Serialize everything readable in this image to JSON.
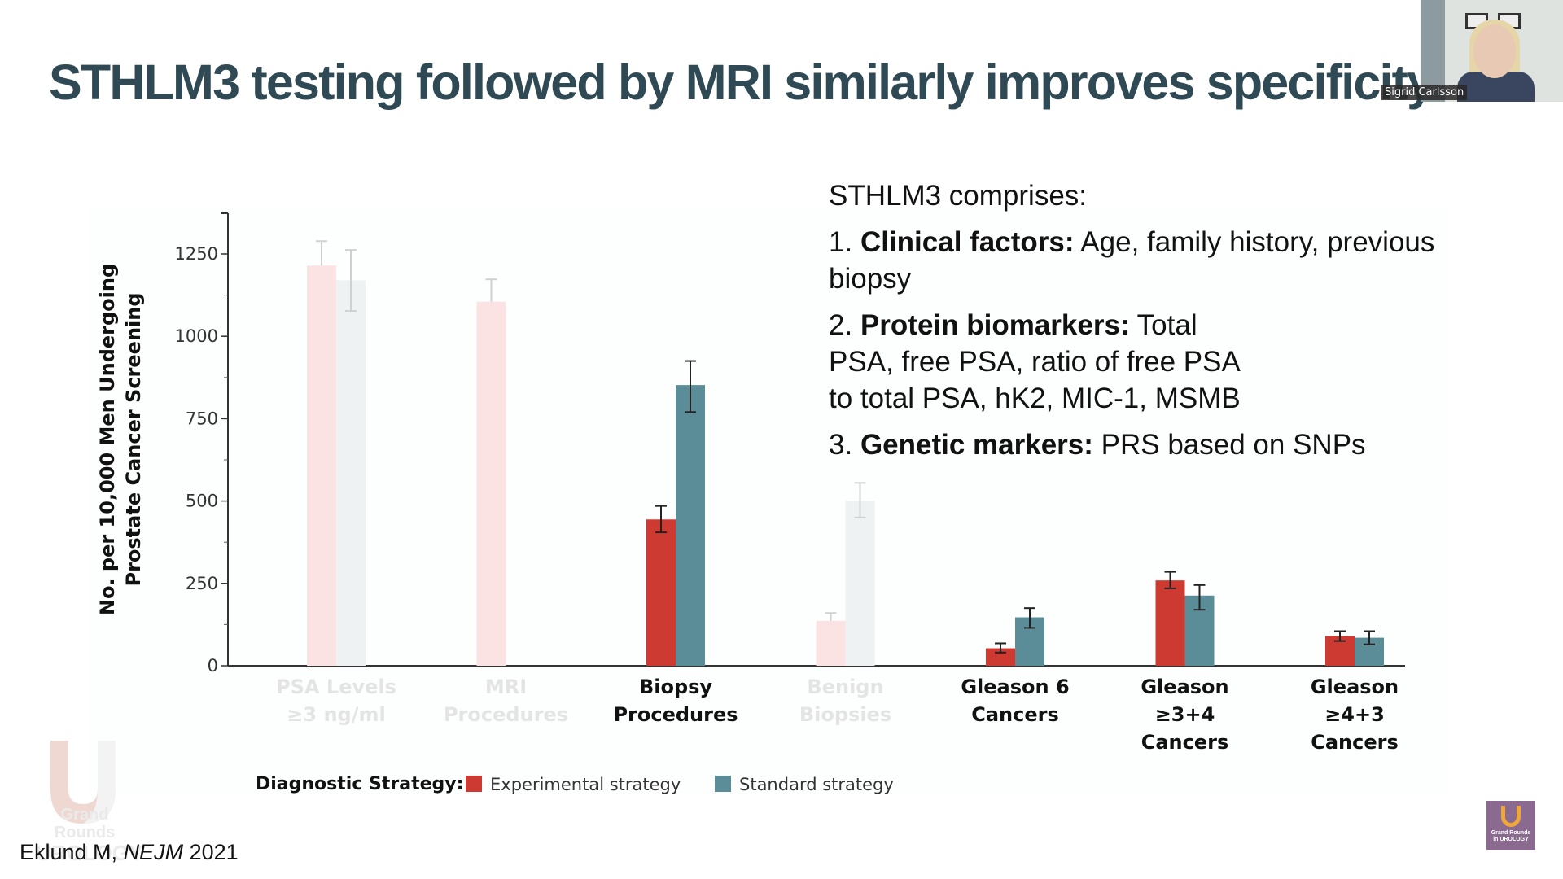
{
  "slide": {
    "title": "STHLM3 testing followed by MRI similarly improves specificity",
    "info_heading": "STHLM3 comprises:",
    "items": [
      {
        "num": "1.",
        "label": "Clinical factors:",
        "text": " Age, family history, previous biopsy"
      },
      {
        "num": "2.",
        "label": "Protein biomarkers:",
        "text": " Total PSA, free PSA, ratio of free PSA to total PSA, hK2, MIC-1, MSMB"
      },
      {
        "num": "3.",
        "label": "Genetic markers:",
        "text": " PRS based on SNPs"
      }
    ],
    "citation_author": "Eklund M, ",
    "citation_journal": "NEJM",
    "citation_year": " 2021",
    "watermark": {
      "line1": "Grand Rounds",
      "line2": "UROLOGY"
    },
    "corner_logo": {
      "line1": "Grand Rounds",
      "line2": "in UROLOGY"
    }
  },
  "video": {
    "speaker_name": "Sigrid Carlsson"
  },
  "chart_data": {
    "type": "bar",
    "title": "",
    "xlabel": "",
    "ylabel": "No. per 10,000 Men Undergoing Prostate Cancer Screening",
    "ylabel_lines": [
      "No. per 10,000 Men Undergoing",
      "Prostate Cancer Screening"
    ],
    "ylim": [
      0,
      1375
    ],
    "yticks": [
      0,
      250,
      500,
      750,
      1000,
      1250
    ],
    "minor_ticks": [
      125,
      375,
      625,
      875,
      1125
    ],
    "grid": false,
    "legend_title": "Diagnostic Strategy:",
    "legend_position": "bottom-left",
    "categories": [
      {
        "lines": [
          "PSA Levels",
          "≥3 ng/ml"
        ],
        "faded": true
      },
      {
        "lines": [
          "MRI",
          "Procedures"
        ],
        "faded": true
      },
      {
        "lines": [
          "Biopsy",
          "Procedures"
        ],
        "faded": false
      },
      {
        "lines": [
          "Benign",
          "Biopsies"
        ],
        "faded": true
      },
      {
        "lines": [
          "Gleason 6",
          "Cancers"
        ],
        "faded": false
      },
      {
        "lines": [
          "Gleason",
          "≥3+4",
          "Cancers"
        ],
        "faded": false
      },
      {
        "lines": [
          "Gleason",
          "≥4+3",
          "Cancers"
        ],
        "faded": false
      }
    ],
    "series": [
      {
        "name": "Experimental strategy",
        "color": "#cc3a31",
        "faded_color": "#fbe3e3",
        "values": [
          1215,
          1105,
          444,
          136,
          53,
          259,
          90
        ],
        "err_low": [
          1215,
          1105,
          405,
          136,
          40,
          235,
          75
        ],
        "err_high": [
          1289,
          1173,
          485,
          160,
          68,
          285,
          105
        ]
      },
      {
        "name": "Standard strategy",
        "color": "#5b8d99",
        "faded_color": "#eef2f3",
        "values": [
          1170,
          null,
          852,
          501,
          147,
          213,
          85
        ],
        "err_low": [
          1077,
          null,
          770,
          450,
          115,
          170,
          65
        ],
        "err_high": [
          1262,
          null,
          925,
          555,
          175,
          245,
          105
        ]
      }
    ]
  }
}
